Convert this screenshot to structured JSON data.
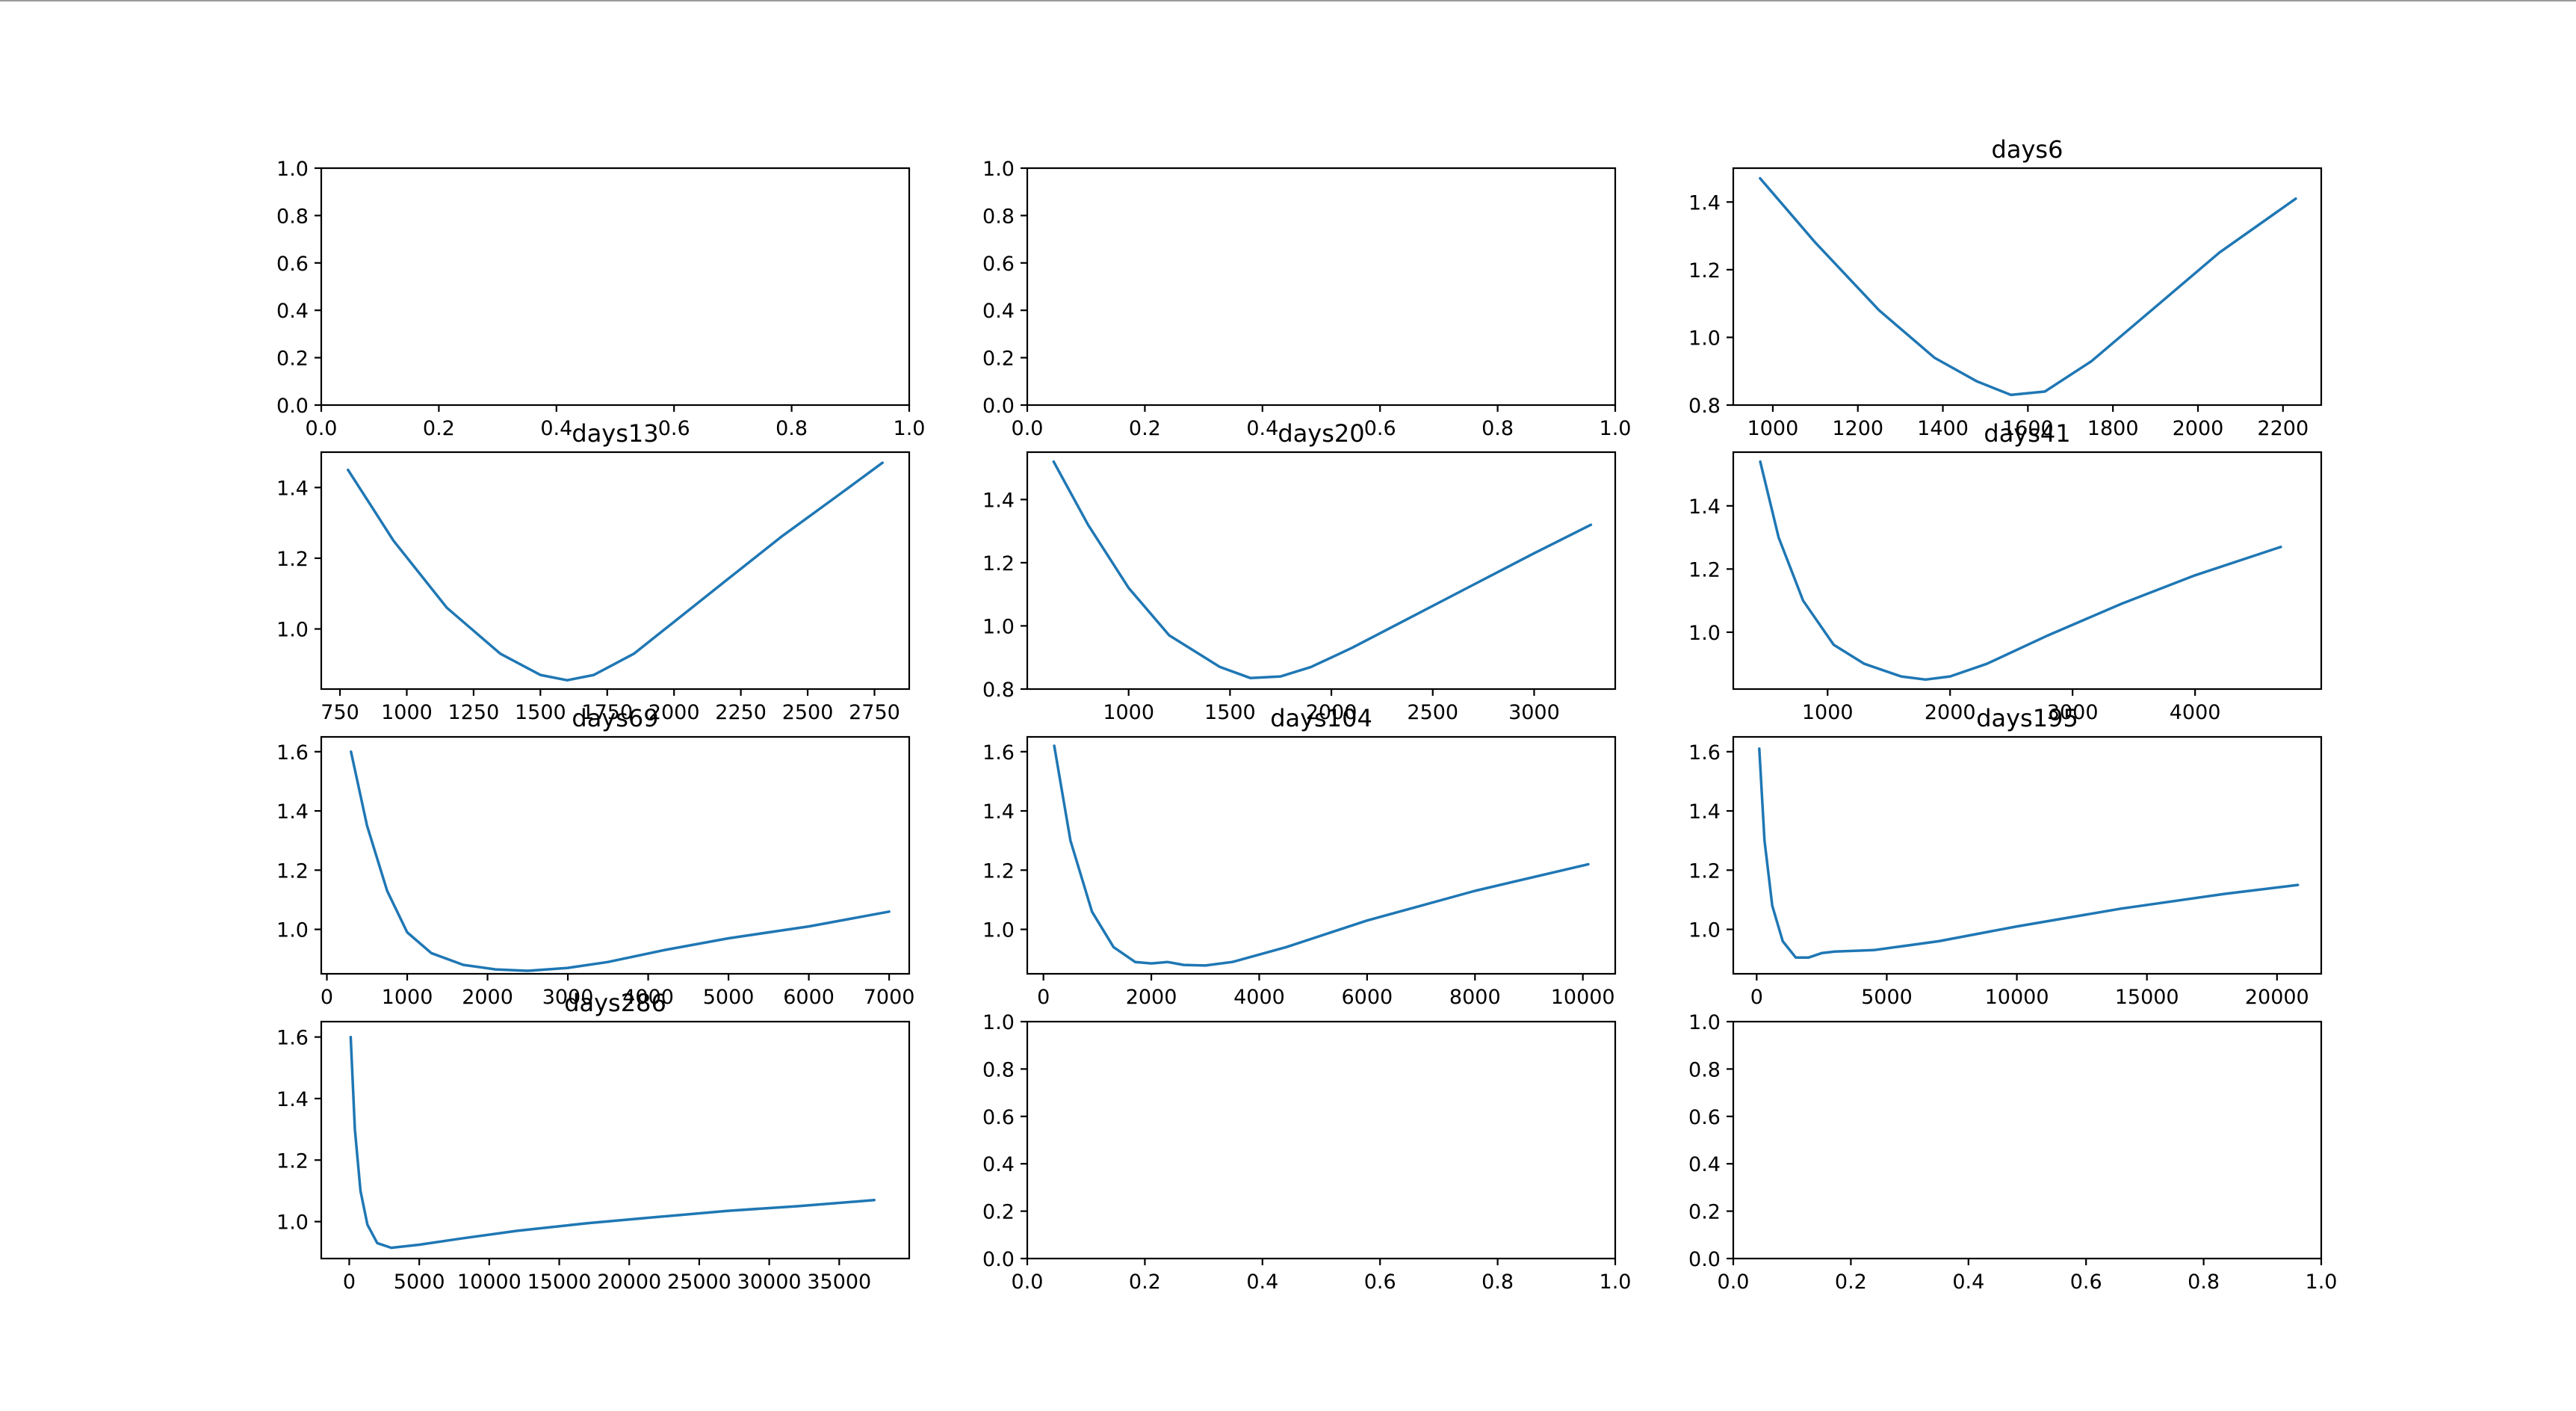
{
  "colors": {
    "line": "#1f77b4",
    "background": "#ffffff",
    "axes": "#000000"
  },
  "layout": {
    "rows": 4,
    "cols": 3
  },
  "chart_data": [
    {
      "type": "line",
      "title": "",
      "xlim": [
        0,
        1
      ],
      "ylim": [
        0,
        1
      ],
      "xticks": [
        0,
        0.2,
        0.4,
        0.6,
        0.8,
        1.0
      ],
      "xtick_labels": [
        "0.0",
        "0.2",
        "0.4",
        "0.6",
        "0.8",
        "1.0"
      ],
      "yticks": [
        0,
        0.2,
        0.4,
        0.6,
        0.8,
        1.0
      ],
      "ytick_labels": [
        "0.0",
        "0.2",
        "0.4",
        "0.6",
        "0.8",
        "1.0"
      ],
      "series": []
    },
    {
      "type": "line",
      "title": "",
      "xlim": [
        0,
        1
      ],
      "ylim": [
        0,
        1
      ],
      "xticks": [
        0,
        0.2,
        0.4,
        0.6,
        0.8,
        1.0
      ],
      "xtick_labels": [
        "0.0",
        "0.2",
        "0.4",
        "0.6",
        "0.8",
        "1.0"
      ],
      "yticks": [
        0,
        0.2,
        0.4,
        0.6,
        0.8,
        1.0
      ],
      "ytick_labels": [
        "0.0",
        "0.2",
        "0.4",
        "0.6",
        "0.8",
        "1.0"
      ],
      "series": []
    },
    {
      "type": "line",
      "title": "days6",
      "xlim": [
        907,
        2290
      ],
      "ylim": [
        0.8,
        1.5
      ],
      "xticks": [
        1000,
        1200,
        1400,
        1600,
        1800,
        2000,
        2200
      ],
      "xtick_labels": [
        "1000",
        "1200",
        "1400",
        "1600",
        "1800",
        "2000",
        "2200"
      ],
      "yticks": [
        0.8,
        1.0,
        1.2,
        1.4
      ],
      "ytick_labels": [
        "0.8",
        "1.0",
        "1.2",
        "1.4"
      ],
      "series": [
        {
          "x": [
            970,
            1100,
            1250,
            1380,
            1480,
            1560,
            1640,
            1750,
            1900,
            2050,
            2230
          ],
          "y": [
            1.47,
            1.28,
            1.08,
            0.94,
            0.87,
            0.83,
            0.84,
            0.93,
            1.09,
            1.25,
            1.41
          ]
        }
      ]
    },
    {
      "type": "line",
      "title": "days13",
      "xlim": [
        680,
        2880
      ],
      "ylim": [
        0.83,
        1.5
      ],
      "xticks": [
        750,
        1000,
        1250,
        1500,
        1750,
        2000,
        2250,
        2500,
        2750
      ],
      "xtick_labels": [
        "750",
        "1000",
        "1250",
        "1500",
        "1750",
        "2000",
        "2250",
        "2500",
        "2750"
      ],
      "yticks": [
        1.0,
        1.2,
        1.4
      ],
      "ytick_labels": [
        "1.0",
        "1.2",
        "1.4"
      ],
      "series": [
        {
          "x": [
            780,
            950,
            1150,
            1350,
            1500,
            1600,
            1700,
            1850,
            2000,
            2200,
            2400,
            2600,
            2780
          ],
          "y": [
            1.45,
            1.25,
            1.06,
            0.93,
            0.87,
            0.855,
            0.87,
            0.93,
            1.02,
            1.14,
            1.26,
            1.37,
            1.47
          ]
        }
      ]
    },
    {
      "type": "line",
      "title": "days20",
      "xlim": [
        500,
        3400
      ],
      "ylim": [
        0.8,
        1.55
      ],
      "xticks": [
        1000,
        1500,
        2000,
        2500,
        3000
      ],
      "xtick_labels": [
        "1000",
        "1500",
        "2000",
        "2500",
        "3000"
      ],
      "yticks": [
        0.8,
        1.0,
        1.2,
        1.4
      ],
      "ytick_labels": [
        "0.8",
        "1.0",
        "1.2",
        "1.4"
      ],
      "series": [
        {
          "x": [
            630,
            800,
            1000,
            1200,
            1450,
            1600,
            1750,
            1900,
            2100,
            2400,
            2700,
            3000,
            3280
          ],
          "y": [
            1.52,
            1.32,
            1.12,
            0.97,
            0.87,
            0.835,
            0.84,
            0.87,
            0.93,
            1.03,
            1.13,
            1.23,
            1.32
          ]
        }
      ]
    },
    {
      "type": "line",
      "title": "days41",
      "xlim": [
        230,
        5030
      ],
      "ylim": [
        0.82,
        1.57
      ],
      "xticks": [
        1000,
        2000,
        3000,
        4000
      ],
      "xtick_labels": [
        "1000",
        "2000",
        "3000",
        "4000"
      ],
      "yticks": [
        1.0,
        1.2,
        1.4
      ],
      "ytick_labels": [
        "1.0",
        "1.2",
        "1.4"
      ],
      "series": [
        {
          "x": [
            450,
            600,
            800,
            1050,
            1300,
            1600,
            1800,
            2000,
            2300,
            2800,
            3400,
            4000,
            4700
          ],
          "y": [
            1.54,
            1.3,
            1.1,
            0.96,
            0.9,
            0.86,
            0.85,
            0.86,
            0.9,
            0.99,
            1.09,
            1.18,
            1.27
          ]
        }
      ]
    },
    {
      "type": "line",
      "title": "days69",
      "xlim": [
        -70,
        7250
      ],
      "ylim": [
        0.85,
        1.65
      ],
      "xticks": [
        0,
        1000,
        2000,
        3000,
        4000,
        5000,
        6000,
        7000
      ],
      "xtick_labels": [
        "0",
        "1000",
        "2000",
        "3000",
        "4000",
        "5000",
        "6000",
        "7000"
      ],
      "yticks": [
        1.0,
        1.2,
        1.4,
        1.6
      ],
      "ytick_labels": [
        "1.0",
        "1.2",
        "1.4",
        "1.6"
      ],
      "series": [
        {
          "x": [
            300,
            500,
            750,
            1000,
            1300,
            1700,
            2100,
            2500,
            3000,
            3500,
            4200,
            5000,
            6000,
            7000
          ],
          "y": [
            1.6,
            1.35,
            1.13,
            0.99,
            0.92,
            0.88,
            0.865,
            0.86,
            0.87,
            0.89,
            0.93,
            0.97,
            1.01,
            1.06
          ]
        }
      ]
    },
    {
      "type": "line",
      "title": "days104",
      "xlim": [
        -300,
        10600
      ],
      "ylim": [
        0.85,
        1.65
      ],
      "xticks": [
        0,
        2000,
        4000,
        6000,
        8000,
        10000
      ],
      "xtick_labels": [
        "0",
        "2000",
        "4000",
        "6000",
        "8000",
        "10000"
      ],
      "yticks": [
        1.0,
        1.2,
        1.4,
        1.6
      ],
      "ytick_labels": [
        "1.0",
        "1.2",
        "1.4",
        "1.6"
      ],
      "series": [
        {
          "x": [
            200,
            500,
            900,
            1300,
            1700,
            2000,
            2300,
            2600,
            3000,
            3500,
            4500,
            6000,
            8000,
            10100
          ],
          "y": [
            1.62,
            1.3,
            1.06,
            0.94,
            0.89,
            0.885,
            0.89,
            0.88,
            0.878,
            0.89,
            0.94,
            1.03,
            1.13,
            1.22
          ]
        }
      ]
    },
    {
      "type": "line",
      "title": "days195",
      "xlim": [
        -900,
        21700
      ],
      "ylim": [
        0.85,
        1.65
      ],
      "xticks": [
        0,
        5000,
        10000,
        15000,
        20000
      ],
      "xtick_labels": [
        "0",
        "5000",
        "10000",
        "15000",
        "20000"
      ],
      "yticks": [
        1.0,
        1.2,
        1.4,
        1.6
      ],
      "ytick_labels": [
        "1.0",
        "1.2",
        "1.4",
        "1.6"
      ],
      "series": [
        {
          "x": [
            100,
            300,
            600,
            1000,
            1500,
            2000,
            2500,
            3000,
            4500,
            7000,
            10000,
            14000,
            18000,
            20800
          ],
          "y": [
            1.61,
            1.3,
            1.08,
            0.96,
            0.905,
            0.905,
            0.92,
            0.925,
            0.93,
            0.96,
            1.01,
            1.07,
            1.12,
            1.15
          ]
        }
      ]
    },
    {
      "type": "line",
      "title": "days286",
      "xlim": [
        -2000,
        40000
      ],
      "ylim": [
        0.88,
        1.65
      ],
      "xticks": [
        0,
        5000,
        10000,
        15000,
        20000,
        25000,
        30000,
        35000
      ],
      "xtick_labels": [
        "0",
        "5000",
        "10000",
        "15000",
        "20000",
        "25000",
        "30000",
        "35000"
      ],
      "yticks": [
        1.0,
        1.2,
        1.4,
        1.6
      ],
      "ytick_labels": [
        "1.0",
        "1.2",
        "1.4",
        "1.6"
      ],
      "series": [
        {
          "x": [
            100,
            400,
            800,
            1300,
            2000,
            3000,
            5000,
            8000,
            12000,
            17000,
            22000,
            27000,
            32000,
            37500
          ],
          "y": [
            1.6,
            1.3,
            1.1,
            0.99,
            0.93,
            0.915,
            0.925,
            0.945,
            0.97,
            0.995,
            1.015,
            1.035,
            1.05,
            1.07
          ]
        }
      ]
    },
    {
      "type": "line",
      "title": "",
      "xlim": [
        0,
        1
      ],
      "ylim": [
        0,
        1
      ],
      "xticks": [
        0,
        0.2,
        0.4,
        0.6,
        0.8,
        1.0
      ],
      "xtick_labels": [
        "0.0",
        "0.2",
        "0.4",
        "0.6",
        "0.8",
        "1.0"
      ],
      "yticks": [
        0,
        0.2,
        0.4,
        0.6,
        0.8,
        1.0
      ],
      "ytick_labels": [
        "0.0",
        "0.2",
        "0.4",
        "0.6",
        "0.8",
        "1.0"
      ],
      "series": []
    },
    {
      "type": "line",
      "title": "",
      "xlim": [
        0,
        1
      ],
      "ylim": [
        0,
        1
      ],
      "xticks": [
        0,
        0.2,
        0.4,
        0.6,
        0.8,
        1.0
      ],
      "xtick_labels": [
        "0.0",
        "0.2",
        "0.4",
        "0.6",
        "0.8",
        "1.0"
      ],
      "yticks": [
        0,
        0.2,
        0.4,
        0.6,
        0.8,
        1.0
      ],
      "ytick_labels": [
        "0.0",
        "0.2",
        "0.4",
        "0.6",
        "0.8",
        "1.0"
      ],
      "series": []
    }
  ]
}
